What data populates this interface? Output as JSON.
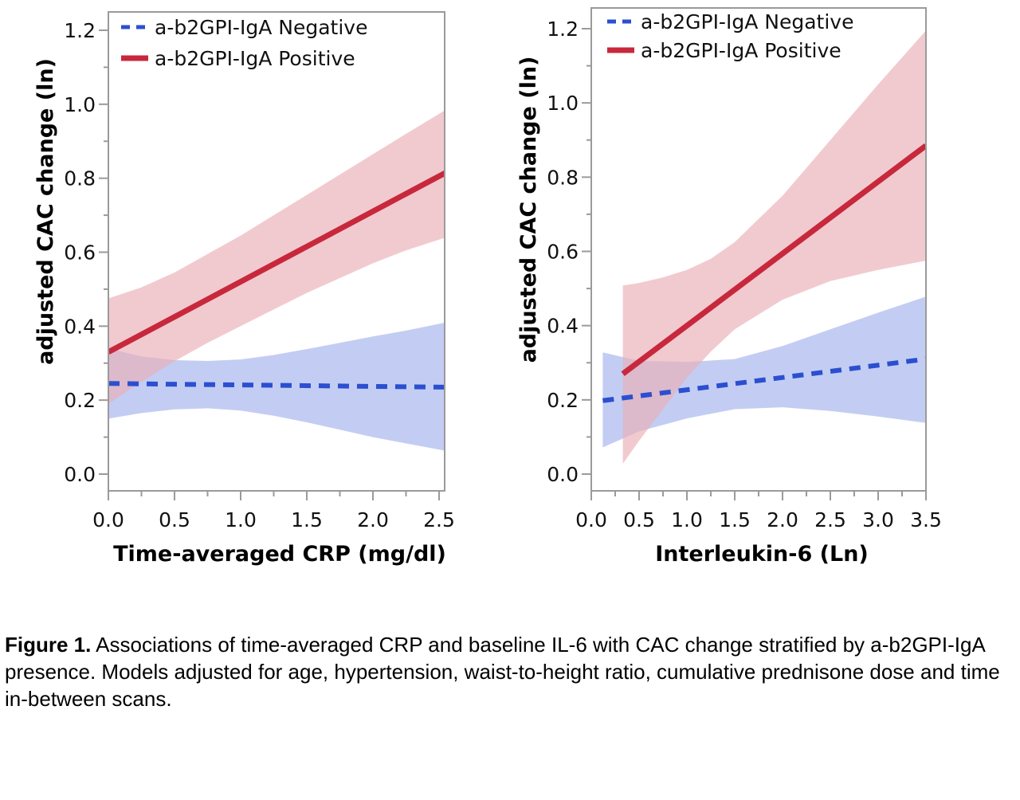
{
  "colors": {
    "positive_line": "#c8283c",
    "positive_band": "#e9aeb6",
    "negative_line": "#2c4fd0",
    "negative_band": "#a9b8ee",
    "frame": "#9a9a9a"
  },
  "legend": {
    "negative_label": "a-b2GPI-IgA Negative",
    "positive_label": "a-b2GPI-IgA Positive"
  },
  "caption": {
    "label": "Figure 1.",
    "text": " Associations of time-averaged CRP and baseline IL-6 with CAC change stratified by a-b2GPI-IgA presence. Models adjusted for age, hypertension, waist-to-height ratio, cumulative prednisone dose and time in-between scans."
  },
  "chart_data": [
    {
      "type": "line",
      "title": "",
      "xlabel": "Time-averaged CRP (mg/dl)",
      "ylabel": "adjusted CAC change (ln)",
      "xlim": [
        0,
        2.55
      ],
      "ylim": [
        -0.05,
        1.25
      ],
      "xticks": [
        0.0,
        0.5,
        1.0,
        1.5,
        2.0,
        2.5
      ],
      "xtick_labels": [
        "0.0",
        "0.5",
        "1.0",
        "1.5",
        "2.0",
        "2.5"
      ],
      "yticks": [
        0.0,
        0.2,
        0.4,
        0.6,
        0.8,
        1.0,
        1.2
      ],
      "ytick_labels": [
        "0.0",
        "0.2",
        "0.4",
        "0.6",
        "0.8",
        "1.0",
        "1.2"
      ],
      "grid": false,
      "legend_position": "top-left",
      "series": [
        {
          "name": "a-b2GPI-IgA Negative",
          "style": "dashed",
          "x": [
            0.0,
            2.55
          ],
          "y": [
            0.245,
            0.235
          ],
          "ci_x": [
            0.0,
            0.25,
            0.5,
            0.75,
            1.0,
            1.25,
            1.5,
            1.75,
            2.0,
            2.25,
            2.55
          ],
          "ci_lower": [
            0.15,
            0.165,
            0.175,
            0.178,
            0.172,
            0.158,
            0.14,
            0.12,
            0.1,
            0.083,
            0.063
          ],
          "ci_upper": [
            0.34,
            0.318,
            0.308,
            0.306,
            0.31,
            0.322,
            0.338,
            0.355,
            0.372,
            0.388,
            0.41
          ]
        },
        {
          "name": "a-b2GPI-IgA Positive",
          "style": "solid",
          "x": [
            0.0,
            2.55
          ],
          "y": [
            0.33,
            0.815
          ],
          "ci_x": [
            0.0,
            0.25,
            0.5,
            0.75,
            1.0,
            1.25,
            1.5,
            1.75,
            2.0,
            2.25,
            2.55
          ],
          "ci_lower": [
            0.19,
            0.25,
            0.305,
            0.355,
            0.4,
            0.445,
            0.49,
            0.53,
            0.57,
            0.605,
            0.64
          ],
          "ci_upper": [
            0.475,
            0.505,
            0.545,
            0.595,
            0.645,
            0.7,
            0.755,
            0.81,
            0.865,
            0.92,
            0.985
          ]
        }
      ]
    },
    {
      "type": "line",
      "title": "",
      "xlabel": "Interleukin-6 (Ln)",
      "ylabel": "adjusted CAC change (ln)",
      "xlim": [
        0,
        3.5
      ],
      "ylim": [
        -0.05,
        1.25
      ],
      "xticks": [
        0.0,
        0.5,
        1.0,
        1.5,
        2.0,
        2.5,
        3.0,
        3.5
      ],
      "xtick_labels": [
        "0.0",
        "0.5",
        "1.0",
        "1.5",
        "2.0",
        "2.5",
        "3.0",
        "3.5"
      ],
      "yticks": [
        0.0,
        0.2,
        0.4,
        0.6,
        0.8,
        1.0,
        1.2
      ],
      "ytick_labels": [
        "0.0",
        "0.2",
        "0.4",
        "0.6",
        "0.8",
        "1.0",
        "1.2"
      ],
      "grid": false,
      "legend_position": "top-left",
      "series": [
        {
          "name": "a-b2GPI-IgA Negative",
          "style": "dashed",
          "x": [
            0.12,
            3.5
          ],
          "y": [
            0.198,
            0.31
          ],
          "ci_x": [
            0.12,
            0.5,
            1.0,
            1.5,
            2.0,
            2.5,
            3.0,
            3.5
          ],
          "ci_lower": [
            0.072,
            0.115,
            0.15,
            0.175,
            0.18,
            0.17,
            0.155,
            0.138
          ],
          "ci_upper": [
            0.328,
            0.305,
            0.302,
            0.31,
            0.345,
            0.39,
            0.435,
            0.478
          ]
        },
        {
          "name": "a-b2GPI-IgA Positive",
          "style": "solid",
          "x": [
            0.33,
            3.5
          ],
          "y": [
            0.27,
            0.885
          ],
          "ci_x": [
            0.33,
            0.5,
            0.75,
            1.0,
            1.25,
            1.5,
            2.0,
            2.5,
            3.0,
            3.5
          ],
          "ci_lower": [
            0.028,
            0.09,
            0.175,
            0.26,
            0.33,
            0.39,
            0.47,
            0.52,
            0.55,
            0.575
          ],
          "ci_upper": [
            0.508,
            0.515,
            0.53,
            0.55,
            0.58,
            0.625,
            0.75,
            0.9,
            1.05,
            1.195
          ]
        }
      ]
    }
  ]
}
